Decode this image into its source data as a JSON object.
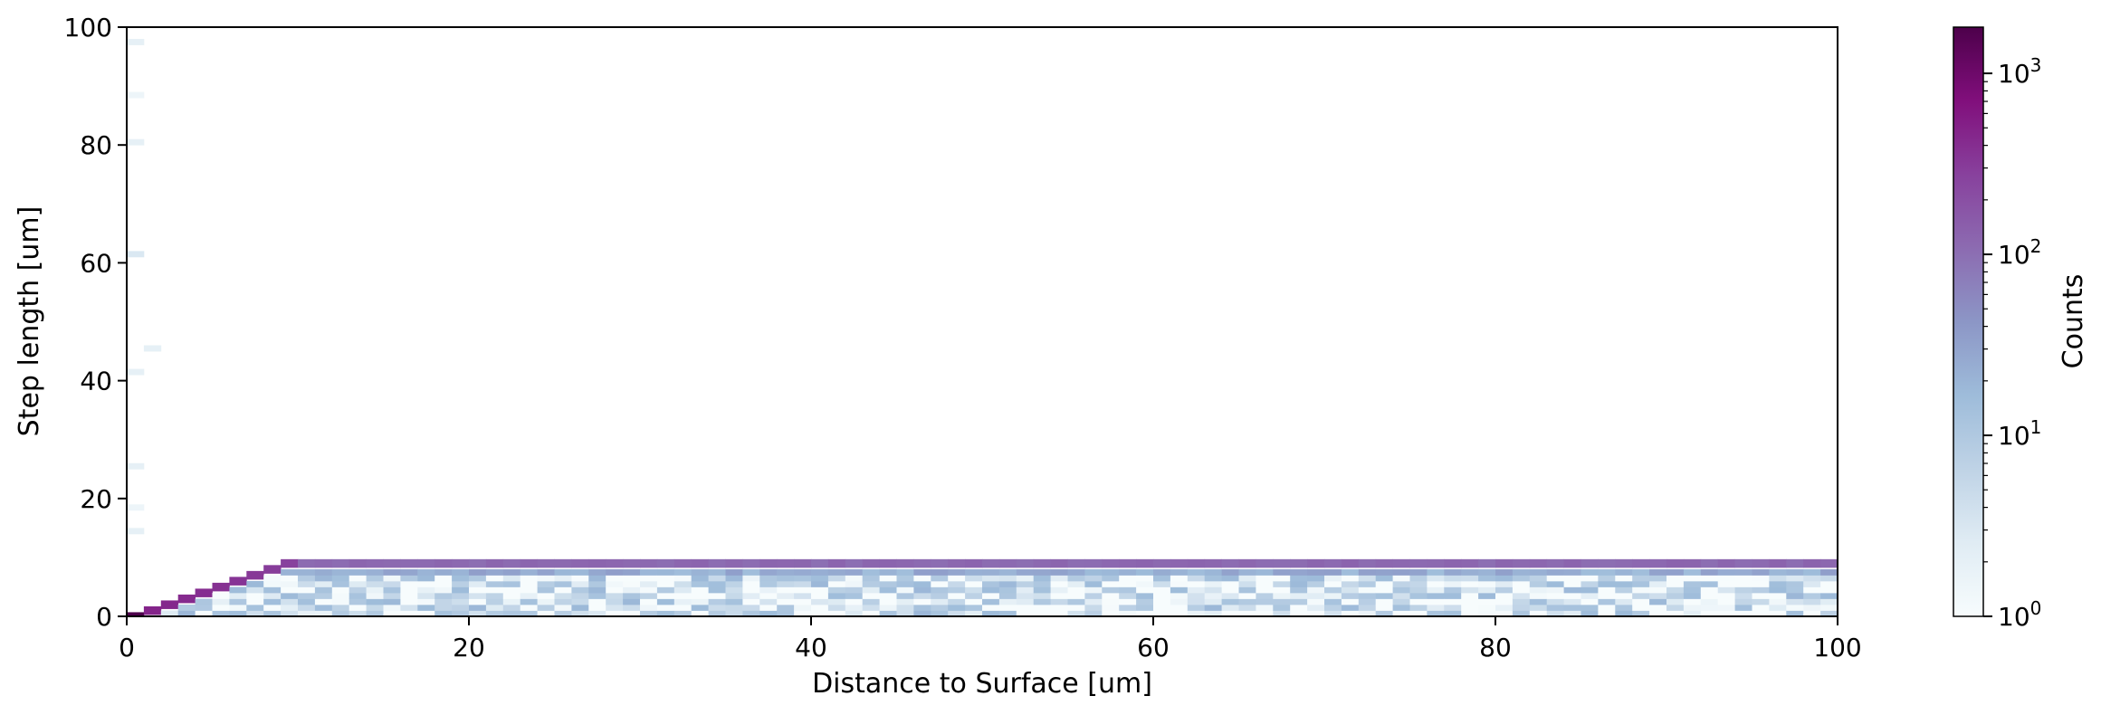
{
  "chart_data": {
    "type": "heatmap",
    "title": "",
    "xlabel": "Distance to Surface [um]",
    "ylabel": "Step length [um]",
    "xlim": [
      0,
      100
    ],
    "ylim": [
      0,
      100
    ],
    "x_bins": 100,
    "x_ticks": [
      "0",
      "20",
      "40",
      "60",
      "80",
      "100"
    ],
    "y_ticks": [
      "0",
      "20",
      "40",
      "60",
      "80",
      "100"
    ],
    "grid": false,
    "colorbar": {
      "label": "Counts",
      "scale": "log",
      "range": [
        1,
        1800
      ],
      "colormap": "BuPu",
      "colors": [
        "#f7fcfd",
        "#e0ecf4",
        "#bfd3e6",
        "#9ebcda",
        "#8c96c6",
        "#8c6bb1",
        "#88419d",
        "#810f7c",
        "#4d004b"
      ],
      "ticks": [
        {
          "value": 1,
          "base": "10",
          "exp": "0"
        },
        {
          "value": 10,
          "base": "10",
          "exp": "1"
        },
        {
          "value": 100,
          "base": "10",
          "exp": "2"
        },
        {
          "value": 1000,
          "base": "10",
          "exp": "3"
        }
      ]
    },
    "description": {
      "dominant_ridge": {
        "x_from": 0,
        "x_to": 100,
        "y_cap": 9.5,
        "ridge_counts_range": [
          90,
          1800
        ]
      },
      "diagonal_edge": "step length approximately equals distance for distance < 10",
      "interior_counts_range": [
        1,
        30
      ],
      "above_cap": "near zero counts except sparse cells at distance < 2"
    }
  }
}
